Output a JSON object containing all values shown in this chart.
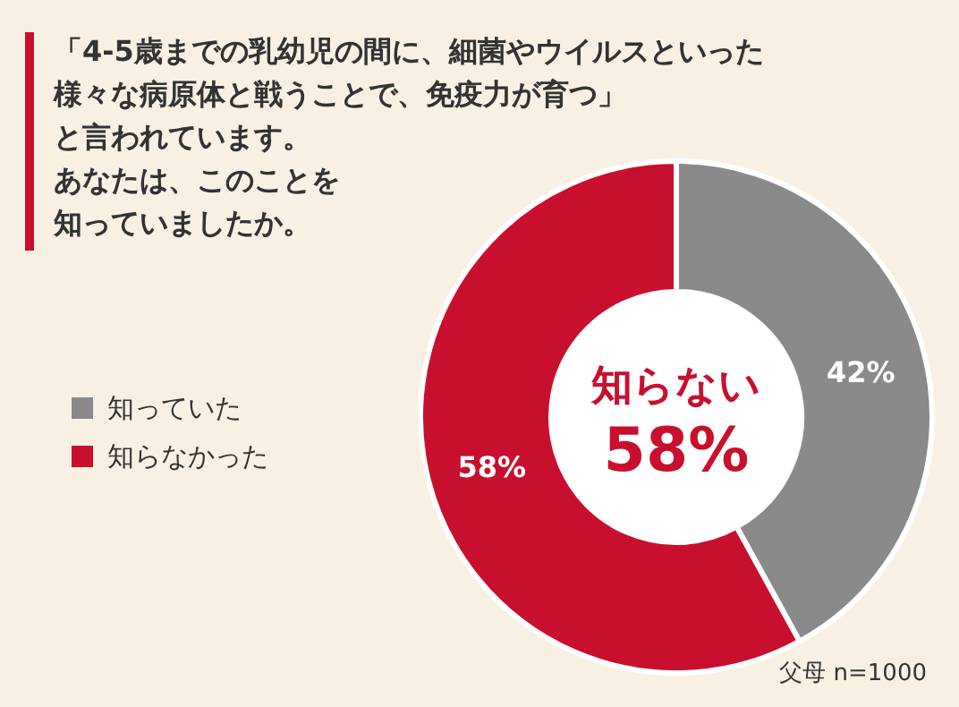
{
  "chart_data": {
    "type": "donut",
    "title": "「4-5歳までの乳幼児の間に、細菌やウイルスといった様々な病原体と戦うことで、免疫力が育つ」",
    "subtitle": "と言われています。",
    "categories": [
      "知っていた",
      "知らなかった"
    ],
    "values": [
      42,
      58
    ],
    "value_labels": [
      "42%",
      "58%"
    ],
    "colors": [
      "#8a8a8a",
      "#c8102e"
    ],
    "legend": "left",
    "annotations": [
      "あなたは、このことを知っていましたか。",
      "知らない",
      "58%",
      "父母 n=1000"
    ]
  }
}
